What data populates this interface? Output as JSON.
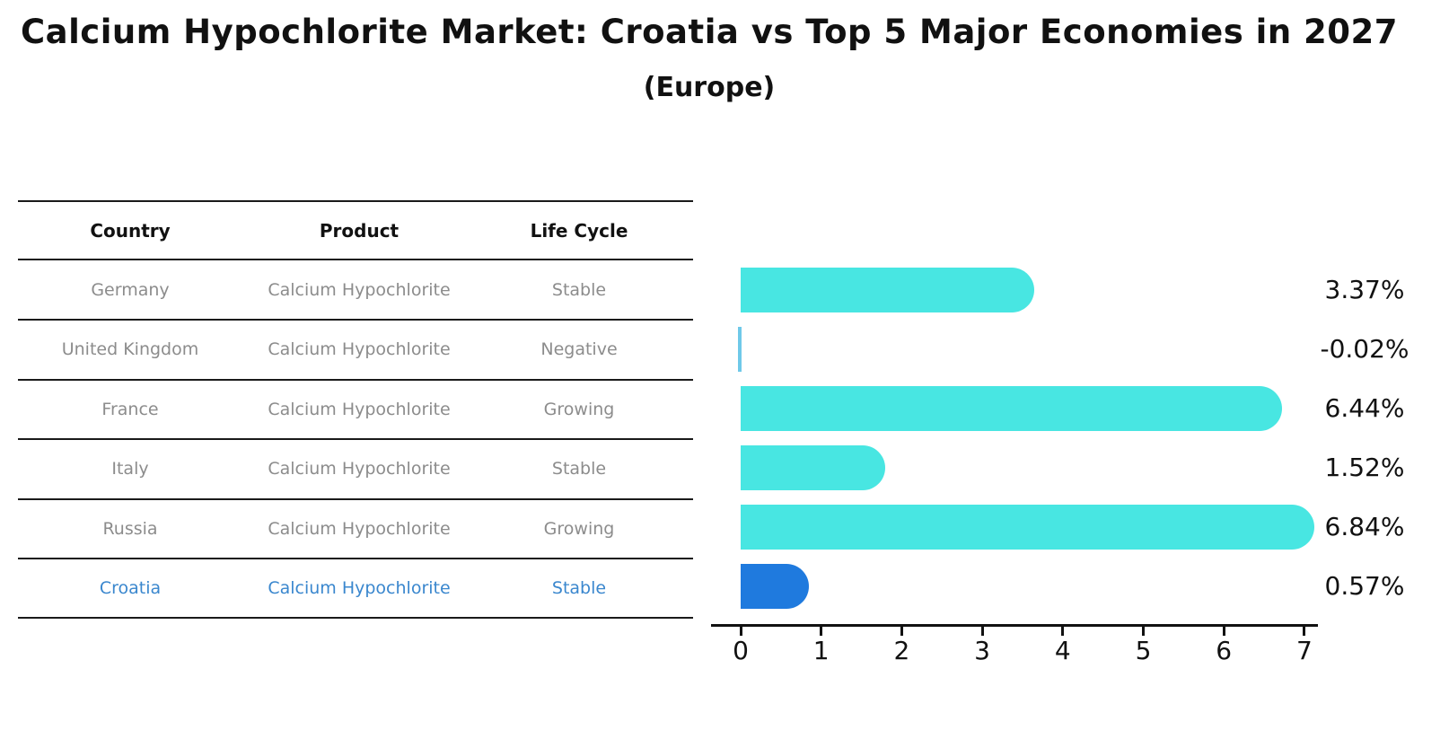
{
  "title": "Calcium Hypochlorite Market: Croatia vs Top 5 Major Economies in 2027",
  "subtitle": "(Europe)",
  "table": {
    "headers": {
      "country": "Country",
      "product": "Product",
      "life_cycle": "Life Cycle"
    },
    "rows": [
      {
        "country": "Germany",
        "product": "Calcium Hypochlorite",
        "life_cycle": "Stable",
        "highlight": false
      },
      {
        "country": "United Kingdom",
        "product": "Calcium Hypochlorite",
        "life_cycle": "Negative",
        "highlight": false
      },
      {
        "country": "France",
        "product": "Calcium Hypochlorite",
        "life_cycle": "Growing",
        "highlight": false
      },
      {
        "country": "Italy",
        "product": "Calcium Hypochlorite",
        "life_cycle": "Stable",
        "highlight": false
      },
      {
        "country": "Russia",
        "product": "Calcium Hypochlorite",
        "life_cycle": "Growing",
        "highlight": false
      },
      {
        "country": "Croatia",
        "product": "Calcium Hypochlorite",
        "life_cycle": "Stable",
        "highlight": true
      }
    ]
  },
  "chart_data": {
    "type": "bar",
    "orientation": "horizontal",
    "title": "Calcium Hypochlorite Market: Croatia vs Top 5 Major Economies in 2027",
    "subtitle": "(Europe)",
    "categories": [
      "Germany",
      "United Kingdom",
      "France",
      "Italy",
      "Russia",
      "Croatia"
    ],
    "values": [
      3.37,
      -0.02,
      6.44,
      1.52,
      6.84,
      0.57
    ],
    "value_labels": [
      "3.37%",
      "-0.02%",
      "6.44%",
      "1.52%",
      "6.84%",
      "0.57%"
    ],
    "xlim": [
      0,
      7
    ],
    "x_ticks": [
      "0",
      "1",
      "2",
      "3",
      "4",
      "5",
      "6",
      "7"
    ],
    "grid": false,
    "legend": "none",
    "bar_color": "#48e6e2",
    "tiny_bar_color": "#6fc9e9",
    "highlight_bar_color": "#1f7ade",
    "highlight_border_color": "#1f7ade",
    "highlight_index": 5,
    "highlight_text_color": "#3a87ce"
  }
}
